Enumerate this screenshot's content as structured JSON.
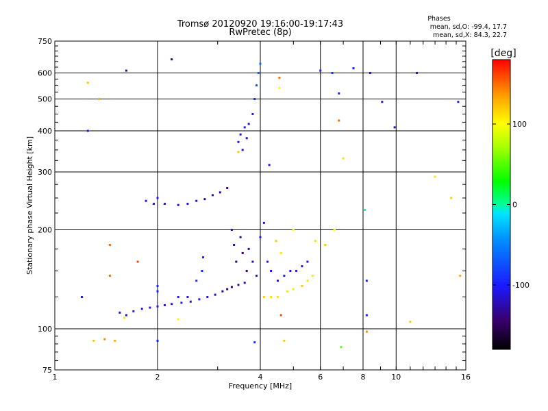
{
  "header": {
    "title": "Tromsø 20120920 19:16:00-19:17:43",
    "subtitle": "RwPretec (8p)"
  },
  "phase_box": {
    "title": "Phases",
    "o_stats": "mean, sd,O: -99.4, 17.7",
    "x_stats": "mean, sd,X:  84.3, 22.7"
  },
  "chart_data": {
    "type": "scatter",
    "title": "Tromsø 20120920 19:16:00-19:17:43",
    "subtitle": "RwPretec (8p)",
    "xlabel": "Frequency [MHz]",
    "ylabel": "Stationary phase Virtual Height [km]",
    "x_scale": "log",
    "y_scale": "log",
    "xlim": [
      1,
      16
    ],
    "ylim": [
      75,
      750
    ],
    "x_ticks": [
      1,
      2,
      4,
      6,
      8,
      10,
      16
    ],
    "y_ticks": [
      75,
      100,
      200,
      300,
      400,
      500,
      600,
      750
    ],
    "grid": true,
    "colorbar": {
      "label": "[deg]",
      "range": [
        -180,
        180
      ],
      "ticks": [
        -100,
        0,
        100
      ],
      "colormap": "rainbow"
    },
    "series": [
      {
        "points": [
          [
            1.2,
            125,
            -110
          ],
          [
            1.55,
            112,
            -105
          ],
          [
            1.62,
            110,
            -110
          ],
          [
            1.7,
            113,
            -100
          ],
          [
            1.8,
            115,
            -110
          ],
          [
            1.9,
            116,
            -105
          ],
          [
            2.0,
            117,
            -100
          ],
          [
            2.1,
            118,
            -110
          ],
          [
            2.2,
            119,
            -105
          ],
          [
            2.35,
            120,
            -100
          ],
          [
            2.5,
            121,
            -110
          ],
          [
            2.65,
            123,
            -100
          ],
          [
            2.8,
            125,
            -110
          ],
          [
            2.95,
            127,
            -120
          ],
          [
            3.1,
            130,
            -130
          ],
          [
            3.2,
            132,
            -140
          ],
          [
            3.3,
            134,
            -150
          ],
          [
            3.45,
            136,
            -130
          ],
          [
            3.6,
            138,
            -120
          ],
          [
            2.0,
            130,
            -100
          ],
          [
            2.0,
            135,
            -95
          ],
          [
            2.3,
            125,
            -100
          ],
          [
            2.45,
            125,
            -110
          ],
          [
            2.6,
            140,
            -90
          ],
          [
            2.7,
            150,
            -95
          ],
          [
            2.72,
            165,
            -100
          ],
          [
            3.3,
            200,
            -120
          ],
          [
            3.35,
            180,
            -130
          ],
          [
            3.4,
            160,
            -140
          ],
          [
            3.5,
            190,
            -130
          ],
          [
            3.55,
            170,
            -150
          ],
          [
            3.65,
            150,
            -140
          ],
          [
            3.7,
            175,
            -130
          ],
          [
            3.8,
            160,
            -120
          ],
          [
            3.9,
            145,
            -110
          ],
          [
            4.0,
            190,
            -100
          ],
          [
            4.1,
            210,
            -110
          ],
          [
            4.2,
            160,
            -100
          ],
          [
            4.3,
            150,
            -110
          ],
          [
            4.5,
            140,
            -110
          ],
          [
            4.7,
            145,
            -100
          ],
          [
            4.9,
            150,
            -110
          ],
          [
            5.1,
            150,
            -100
          ],
          [
            5.3,
            155,
            -110
          ],
          [
            5.5,
            160,
            -110
          ],
          [
            5.7,
            145,
            -100
          ],
          [
            1.85,
            245,
            -100
          ],
          [
            1.95,
            240,
            -110
          ],
          [
            2.0,
            250,
            -105
          ],
          [
            2.1,
            240,
            -110
          ],
          [
            2.3,
            238,
            -110
          ],
          [
            2.45,
            240,
            -110
          ],
          [
            2.6,
            245,
            -115
          ],
          [
            2.75,
            248,
            -120
          ],
          [
            2.9,
            255,
            -125
          ],
          [
            3.05,
            260,
            -130
          ],
          [
            3.2,
            268,
            -135
          ],
          [
            3.45,
            370,
            -100
          ],
          [
            3.5,
            390,
            -110
          ],
          [
            3.55,
            350,
            -110
          ],
          [
            3.6,
            410,
            -105
          ],
          [
            3.65,
            380,
            -115
          ],
          [
            3.7,
            420,
            -110
          ],
          [
            3.8,
            450,
            -100
          ],
          [
            3.85,
            500,
            -90
          ],
          [
            3.9,
            550,
            -80
          ],
          [
            3.95,
            600,
            -70
          ],
          [
            4.0,
            640,
            -60
          ],
          [
            4.1,
            125,
            120
          ],
          [
            4.3,
            125,
            110
          ],
          [
            4.5,
            125,
            110
          ],
          [
            4.8,
            130,
            110
          ],
          [
            5.0,
            132,
            110
          ],
          [
            5.3,
            135,
            120
          ],
          [
            5.5,
            140,
            110
          ],
          [
            5.7,
            145,
            100
          ],
          [
            5.8,
            185,
            110
          ],
          [
            5.0,
            200,
            100
          ],
          [
            4.6,
            170,
            110
          ],
          [
            4.45,
            185,
            120
          ],
          [
            1.25,
            560,
            120
          ],
          [
            1.25,
            400,
            -100
          ],
          [
            1.35,
            500,
            130
          ],
          [
            1.62,
            610,
            -130
          ],
          [
            2.2,
            660,
            -140
          ],
          [
            6.0,
            610,
            -100
          ],
          [
            6.5,
            600,
            -90
          ],
          [
            6.8,
            520,
            -100
          ],
          [
            7.5,
            620,
            -100
          ],
          [
            8.4,
            600,
            -110
          ],
          [
            9.1,
            490,
            -120
          ],
          [
            11.5,
            600,
            -120
          ],
          [
            15.2,
            490,
            -100
          ],
          [
            6.8,
            430,
            150
          ],
          [
            9.9,
            410,
            -120
          ],
          [
            13.0,
            290,
            110
          ],
          [
            14.5,
            250,
            120
          ],
          [
            15.4,
            145,
            130
          ],
          [
            6.2,
            180,
            120
          ],
          [
            6.6,
            200,
            100
          ],
          [
            7.0,
            330,
            110
          ],
          [
            8.1,
            230,
            0
          ],
          [
            8.2,
            140,
            -100
          ],
          [
            8.2,
            110,
            -100
          ],
          [
            8.2,
            98,
            140
          ],
          [
            11.0,
            105,
            120
          ],
          [
            1.3,
            92,
            120
          ],
          [
            1.4,
            93,
            140
          ],
          [
            1.5,
            92,
            130
          ],
          [
            2.0,
            92,
            -100
          ],
          [
            3.85,
            91,
            -90
          ],
          [
            4.7,
            92,
            120
          ],
          [
            6.9,
            88,
            50
          ],
          [
            1.45,
            180,
            150
          ],
          [
            1.45,
            145,
            150
          ],
          [
            1.75,
            160,
            160
          ],
          [
            4.6,
            110,
            160
          ],
          [
            2.3,
            107,
            100
          ],
          [
            1.6,
            108,
            110
          ],
          [
            3.45,
            345,
            120
          ],
          [
            4.25,
            315,
            -110
          ],
          [
            4.55,
            580,
            150
          ],
          [
            4.55,
            540,
            100
          ]
        ]
      }
    ]
  }
}
